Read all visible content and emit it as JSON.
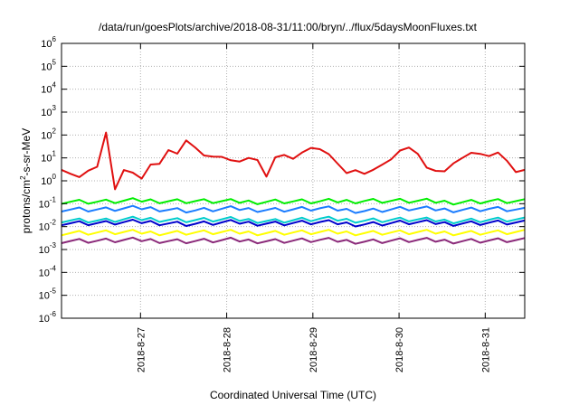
{
  "chart_data": {
    "type": "line",
    "title": "/data/run/goesPlots/archive/2018-08-31/11:00/bryn/../flux/5daysMoonFluxes.txt",
    "xlabel": "Coordinated Universal Time (UTC)",
    "ylabel": "protons/cm2-s-sr-MeV",
    "ylabel_parts": {
      "base": "protons/cm",
      "sup": "2",
      "rest": "-s-sr-MeV"
    },
    "x_unit": "days",
    "xlim": [
      "2018-08-26 02:00",
      "2018-08-31 11:00"
    ],
    "ylim": [
      1e-06,
      1000000.0
    ],
    "yscale": "log",
    "grid": true,
    "legend": "none",
    "x_ticks": [
      "2018-8-27",
      "2018-8-28",
      "2018-8-29",
      "2018-8-30",
      "2018-8-31"
    ],
    "y_ticks": [
      {
        "value": 1e-06,
        "base": "10",
        "exp": "-6"
      },
      {
        "value": 1e-05,
        "base": "10",
        "exp": "-5"
      },
      {
        "value": 0.0001,
        "base": "10",
        "exp": "-4"
      },
      {
        "value": 0.001,
        "base": "10",
        "exp": "-3"
      },
      {
        "value": 0.01,
        "base": "10",
        "exp": "-2"
      },
      {
        "value": 0.1,
        "base": "10",
        "exp": "-1"
      },
      {
        "value": 1,
        "base": "10",
        "exp": "0"
      },
      {
        "value": 10,
        "base": "10",
        "exp": "1"
      },
      {
        "value": 100,
        "base": "10",
        "exp": "2"
      },
      {
        "value": 1000,
        "base": "10",
        "exp": "3"
      },
      {
        "value": 10000,
        "base": "10",
        "exp": "4"
      },
      {
        "value": 100000,
        "base": "10",
        "exp": "5"
      },
      {
        "value": 1000000,
        "base": "10",
        "exp": "6"
      }
    ],
    "series": [
      {
        "color": "#e01010",
        "width": 2,
        "x": [
          "2018-08-26 02:00",
          "2018-08-26 03:12",
          "2018-08-26 04:48",
          "2018-08-26 06:24",
          "2018-08-26 07:12",
          "2018-08-26 08:00",
          "2018-08-26 08:48",
          "2018-08-26 09:36",
          "2018-08-26 10:24",
          "2018-08-26 11:12",
          "2018-08-26 12:00",
          "2018-08-26 13:12",
          "2018-08-26 14:24",
          "2018-08-26 15:12",
          "2018-08-26 16:00",
          "2018-08-26 16:48",
          "2018-08-26 18:00",
          "2018-08-26 19:12",
          "2018-08-26 21:36",
          "2018-08-27 00:00",
          "2018-08-27 02:24",
          "2018-08-27 05:02",
          "2018-08-27 07:12",
          "2018-08-27 08:24",
          "2018-08-27 09:36",
          "2018-08-27 10:48",
          "2018-08-27 11:36",
          "2018-08-27 12:24",
          "2018-08-27 13:12",
          "2018-08-27 14:24",
          "2018-08-27 15:36",
          "2018-08-27 16:48",
          "2018-08-27 18:00",
          "2018-08-27 19:12",
          "2018-08-27 20:24",
          "2018-08-27 21:36",
          "2018-08-28 00:00",
          "2018-08-28 02:24",
          "2018-08-28 04:48",
          "2018-08-28 07:12",
          "2018-08-28 09:36",
          "2018-08-28 10:26",
          "2018-08-28 11:02",
          "2018-08-28 11:38",
          "2018-08-28 12:14",
          "2018-08-28 13:12",
          "2018-08-28 15:36",
          "2018-08-28 18:00",
          "2018-08-28 21:36",
          "2018-08-29 00:00",
          "2018-08-29 03:36",
          "2018-08-29 07:12",
          "2018-08-29 09:36",
          "2018-08-29 12:00",
          "2018-08-29 14:24",
          "2018-08-29 16:48",
          "2018-08-29 19:12",
          "2018-08-29 21:36",
          "2018-08-30 00:00",
          "2018-08-30 02:24",
          "2018-08-30 04:48",
          "2018-08-30 07:12",
          "2018-08-30 09:36",
          "2018-08-30 12:00",
          "2018-08-30 14:24",
          "2018-08-30 16:48",
          "2018-08-30 19:12",
          "2018-08-30 21:36",
          "2018-08-31 00:00",
          "2018-08-31 02:24",
          "2018-08-31 04:48",
          "2018-08-31 07:12",
          "2018-08-31 09:36",
          "2018-08-31 11:00"
        ],
        "y": [
          3,
          2.2,
          2,
          1.6,
          1.4,
          1,
          2,
          3,
          4,
          5,
          4,
          2.5,
          130,
          8,
          1,
          0.4,
          1,
          3,
          2.5,
          1,
          5,
          6,
          3,
          200,
          25,
          10,
          15,
          30,
          150,
          60,
          20,
          8,
          15,
          20,
          10,
          12,
          10,
          6,
          8,
          12,
          6,
          3,
          1.5,
          2,
          1,
          10,
          15,
          8,
          20,
          30,
          20,
          5,
          2,
          3,
          2,
          3,
          5,
          8,
          20,
          30,
          20,
          4,
          3,
          2,
          5,
          8,
          15,
          20,
          10,
          15,
          20,
          3,
          2,
          3
        ]
      },
      {
        "color": "#00ee00",
        "width": 2,
        "x": [
          "2018-08-26 02:00",
          "2018-08-26 14:00",
          "2018-08-27 02:00",
          "2018-08-27 14:00",
          "2018-08-28 02:00",
          "2018-08-28 14:00",
          "2018-08-29 02:00",
          "2018-08-29 14:00",
          "2018-08-30 02:00",
          "2018-08-30 14:00",
          "2018-08-31 02:00",
          "2018-08-31 11:00"
        ],
        "y": [
          0.13,
          0.12,
          0.14,
          0.13,
          0.12,
          0.13,
          0.12,
          0.14,
          0.13,
          0.12,
          0.13,
          0.12
        ]
      },
      {
        "color": "#1a7cff",
        "width": 2,
        "x": [
          "2018-08-26 02:00",
          "2018-08-26 14:00",
          "2018-08-27 02:00",
          "2018-08-27 14:00",
          "2018-08-28 02:00",
          "2018-08-28 14:00",
          "2018-08-29 02:00",
          "2018-08-29 14:00",
          "2018-08-30 02:00",
          "2018-08-30 14:00",
          "2018-08-31 02:00",
          "2018-08-31 11:00"
        ],
        "y": [
          0.06,
          0.055,
          0.065,
          0.05,
          0.06,
          0.055,
          0.06,
          0.05,
          0.06,
          0.055,
          0.06,
          0.05
        ]
      },
      {
        "color": "#00cccc",
        "width": 2,
        "x": [
          "2018-08-26 02:00",
          "2018-08-26 14:00",
          "2018-08-27 02:00",
          "2018-08-27 14:00",
          "2018-08-28 02:00",
          "2018-08-28 14:00",
          "2018-08-29 02:00",
          "2018-08-29 14:00",
          "2018-08-30 02:00",
          "2018-08-30 14:00",
          "2018-08-31 02:00",
          "2018-08-31 11:00"
        ],
        "y": [
          0.02,
          0.018,
          0.022,
          0.019,
          0.02,
          0.018,
          0.021,
          0.019,
          0.02,
          0.018,
          0.02,
          0.019
        ]
      },
      {
        "color": "#0000cc",
        "width": 2,
        "x": [
          "2018-08-26 02:00",
          "2018-08-26 14:00",
          "2018-08-27 02:00",
          "2018-08-27 14:00",
          "2018-08-28 02:00",
          "2018-08-28 14:00",
          "2018-08-29 02:00",
          "2018-08-29 14:00",
          "2018-08-30 02:00",
          "2018-08-30 14:00",
          "2018-08-31 02:00",
          "2018-08-31 11:00"
        ],
        "y": [
          0.015,
          0.014,
          0.016,
          0.013,
          0.015,
          0.014,
          0.015,
          0.013,
          0.015,
          0.014,
          0.015,
          0.014
        ]
      },
      {
        "color": "#ffff00",
        "width": 2,
        "x": [
          "2018-08-26 02:00",
          "2018-08-26 14:00",
          "2018-08-27 02:00",
          "2018-08-27 14:00",
          "2018-08-28 02:00",
          "2018-08-28 14:00",
          "2018-08-29 02:00",
          "2018-08-29 14:00",
          "2018-08-30 02:00",
          "2018-08-30 14:00",
          "2018-08-31 02:00",
          "2018-08-31 11:00"
        ],
        "y": [
          0.0055,
          0.0055,
          0.0055,
          0.0055,
          0.0055,
          0.0055,
          0.0055,
          0.0055,
          0.0055,
          0.0055,
          0.0055,
          0.0055
        ]
      },
      {
        "color": "#8b2a7a",
        "width": 2,
        "x": [
          "2018-08-26 02:00",
          "2018-08-26 14:00",
          "2018-08-27 02:00",
          "2018-08-27 14:00",
          "2018-08-28 02:00",
          "2018-08-28 14:00",
          "2018-08-29 02:00",
          "2018-08-29 14:00",
          "2018-08-30 02:00",
          "2018-08-30 14:00",
          "2018-08-31 02:00",
          "2018-08-31 11:00"
        ],
        "y": [
          0.0025,
          0.0024,
          0.0026,
          0.0023,
          0.0025,
          0.0024,
          0.0025,
          0.0023,
          0.0025,
          0.0024,
          0.0025,
          0.0024
        ]
      }
    ]
  }
}
